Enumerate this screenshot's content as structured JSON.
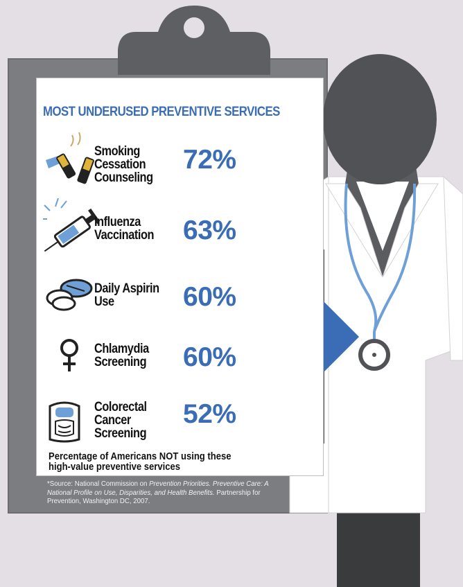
{
  "title": "MOST UNDERUSED PREVENTIVE SERVICES",
  "services": [
    {
      "label": "Smoking\nCessation\nCounseling",
      "percent": "72%",
      "icon": "cigarettes-icon"
    },
    {
      "label": "Influenza\nVaccination",
      "percent": "63%",
      "icon": "syringe-icon"
    },
    {
      "label": "Daily Aspirin\nUse",
      "percent": "60%",
      "icon": "aspirin-pills-icon"
    },
    {
      "label": "Chlamydia\nScreening",
      "percent": "60%",
      "icon": "female-symbol-icon"
    },
    {
      "label": "Colorectal\nCancer\nScreening",
      "percent": "52%",
      "icon": "anatomy-torso-icon"
    }
  ],
  "caption": "Percentage of Americans NOT using these\nhigh-value preventive services",
  "source": {
    "prefix": "*Source: National Commission on ",
    "org_italic": "Prevention Priorities. Preventive Care: A National Profile on Use, Disparities, and Health Benefits.",
    "suffix": " Partnership for Prevention, Washington DC, 2007."
  },
  "colors": {
    "background": "#e3dfe4",
    "clipboard": "#7b7d80",
    "accent_blue": "#3a6db5",
    "stethoscope_blue": "#6e9fd6",
    "figure_dark": "#505256",
    "coat": "#ffffff"
  }
}
